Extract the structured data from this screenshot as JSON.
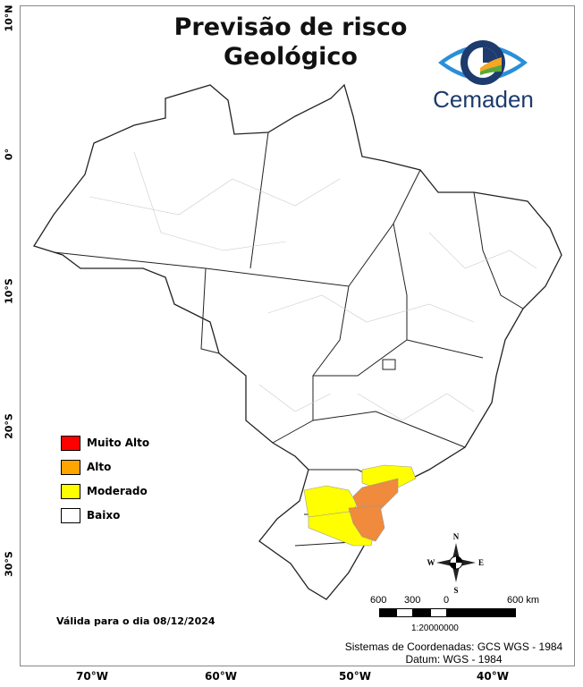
{
  "title_line1": "Previsão de risco",
  "title_line2": "Geológico",
  "logo": {
    "text": "Cemaden",
    "colors": {
      "dark_blue": "#1d3b6e",
      "light_blue": "#2a8fd8",
      "orange": "#f5a623",
      "green": "#5aa83a"
    }
  },
  "axes": {
    "latitude_labels": [
      "10°N",
      "0°",
      "10°S",
      "20°S",
      "30°S"
    ],
    "longitude_labels": [
      "70°W",
      "60°W",
      "50°W",
      "40°W"
    ]
  },
  "legend": [
    {
      "label": "Muito Alto",
      "color": "#ff0000"
    },
    {
      "label": "Alto",
      "color": "#ffa500"
    },
    {
      "label": "Moderado",
      "color": "#ffff00"
    },
    {
      "label": "Baixo",
      "color": "#ffffff"
    }
  ],
  "risk_fill_colors": {
    "alto": "#f08a3c",
    "moderado": "#ffff00"
  },
  "validity": "Válida para o dia 08/12/2024",
  "compass": {
    "n": "N",
    "s": "S",
    "e": "E",
    "w": "W"
  },
  "scale": {
    "labels": [
      "600",
      "300",
      "0",
      "600 km"
    ],
    "ratio": "1:20000000"
  },
  "crs": {
    "line1": "Sistemas de Coordenadas: GCS WGS - 1984",
    "line2": "Datum: WGS - 1984"
  }
}
